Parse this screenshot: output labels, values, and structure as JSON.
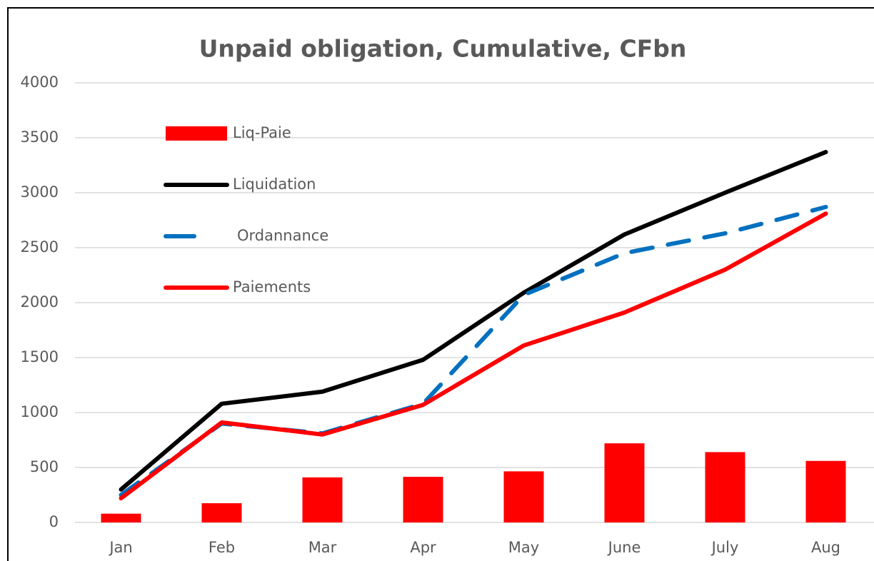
{
  "chart_data": {
    "type": "bar-line",
    "title": "Unpaid obligation, Cumulative, CFbn",
    "categories": [
      "Jan",
      "Feb",
      "Mar",
      "Apr",
      "May",
      "June",
      "July",
      "Aug"
    ],
    "series": [
      {
        "name": "Liq-Paie",
        "type": "bar",
        "color": "#ff0000",
        "values": [
          80,
          175,
          410,
          415,
          465,
          720,
          640,
          560
        ]
      },
      {
        "name": "Liquidation",
        "type": "line",
        "color": "#000000",
        "dashed": false,
        "values": [
          300,
          1080,
          1190,
          1480,
          2090,
          2620,
          3000,
          3370
        ]
      },
      {
        "name": "Ordannance",
        "type": "line",
        "color": "#0070c0",
        "dashed": true,
        "values": [
          250,
          900,
          810,
          1080,
          2070,
          2450,
          2630,
          2870
        ]
      },
      {
        "name": "Paiements",
        "type": "line",
        "color": "#ff0000",
        "dashed": false,
        "values": [
          220,
          910,
          800,
          1070,
          1610,
          1910,
          2300,
          2810
        ]
      }
    ],
    "ylim": [
      0,
      4000
    ],
    "yticks": [
      0,
      500,
      1000,
      1500,
      2000,
      2500,
      3000,
      3500,
      4000
    ],
    "grid": true
  }
}
